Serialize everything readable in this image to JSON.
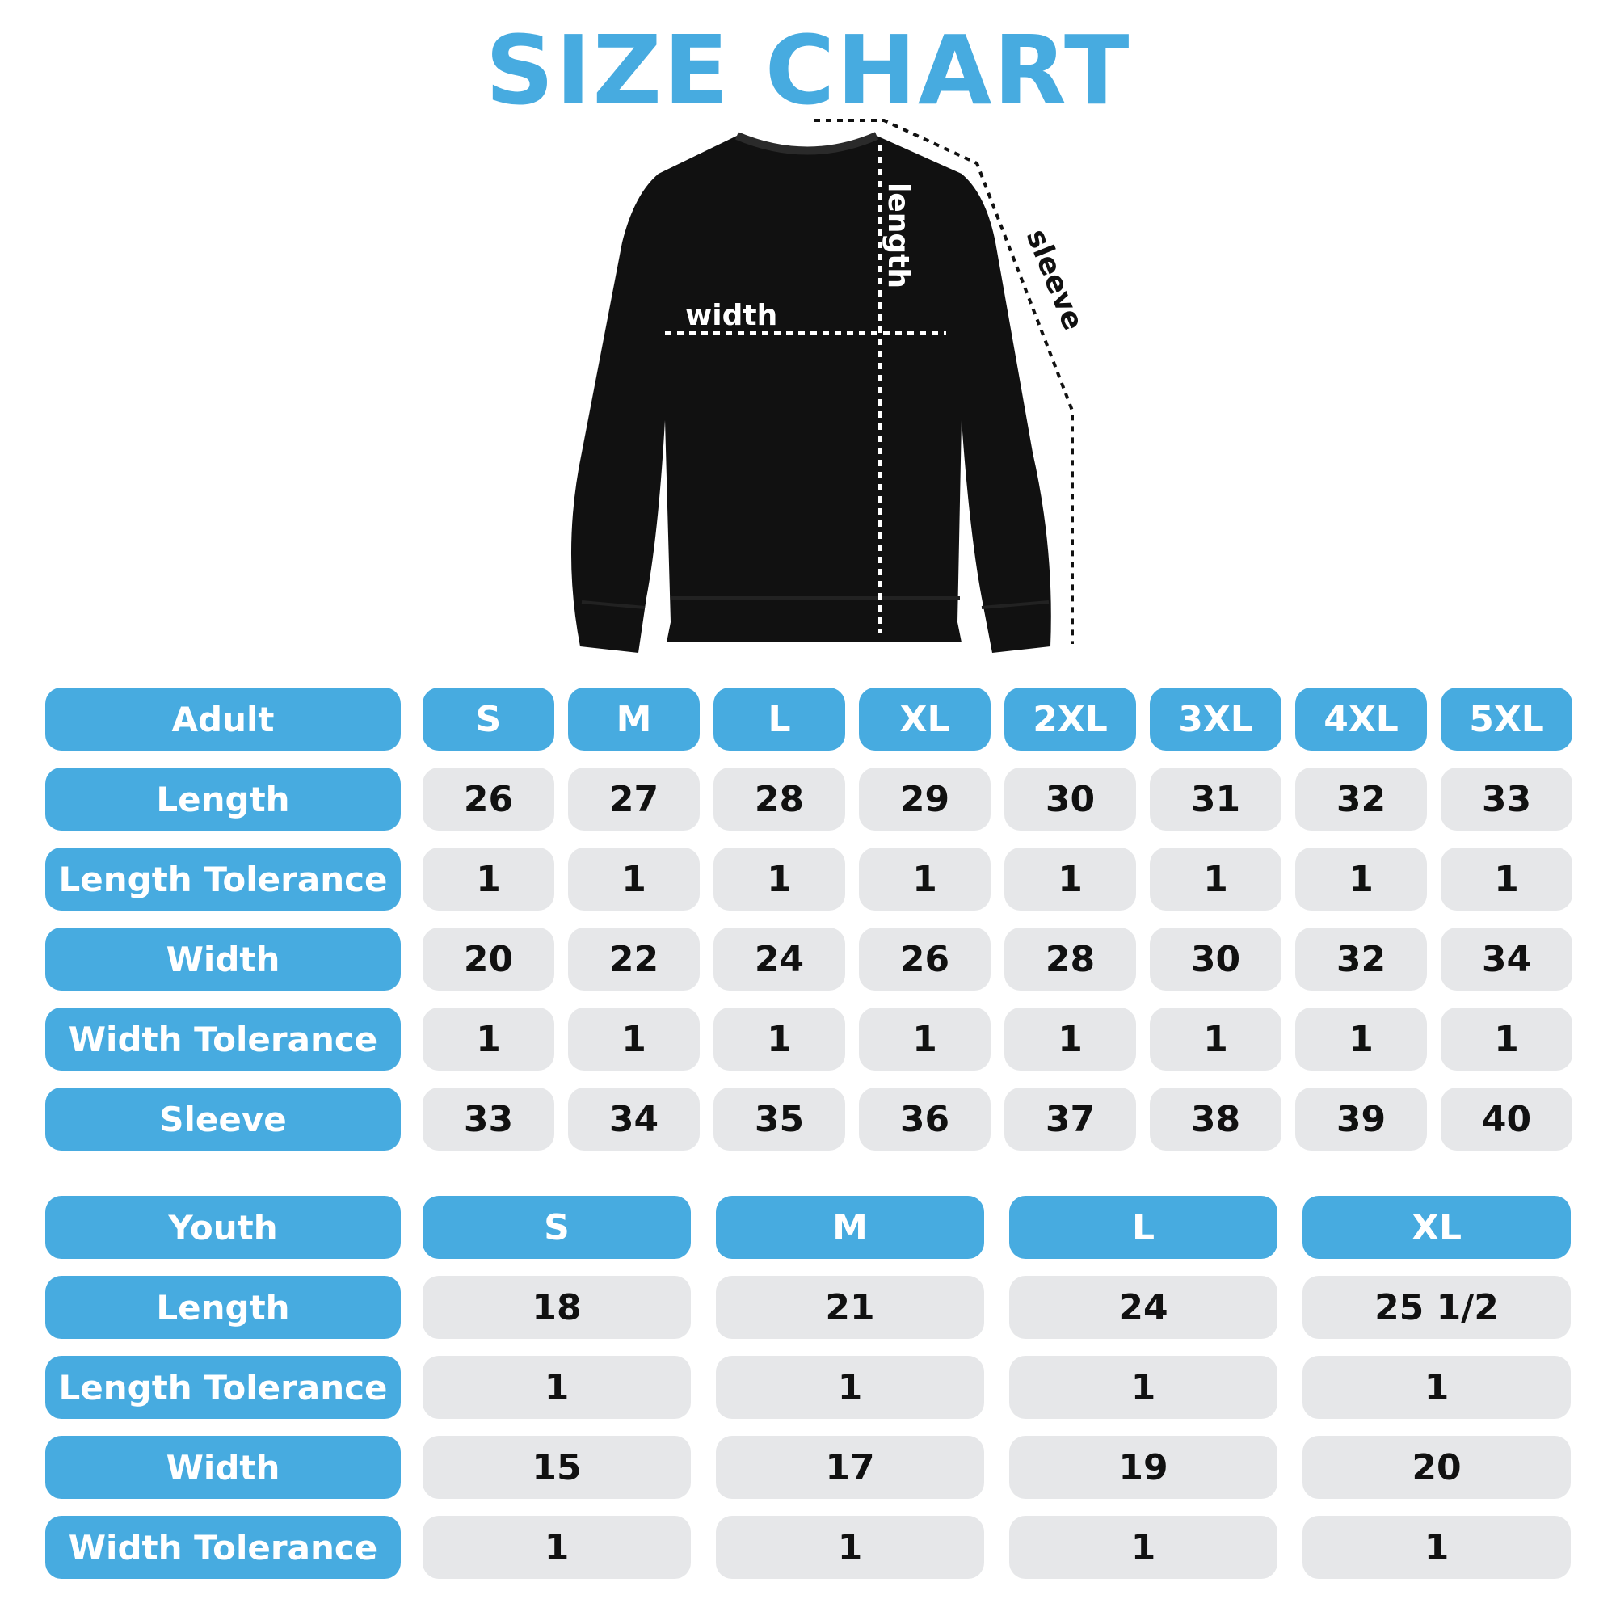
{
  "title": "SIZE CHART",
  "diagram": {
    "width_label": "width",
    "length_label": "length",
    "sleeve_label": "sleeve"
  },
  "colors": {
    "accent": "#47abe0",
    "cell": "#e6e7e9",
    "garment": "#111111"
  },
  "adult": {
    "header": "Adult",
    "sizes": [
      "S",
      "M",
      "L",
      "XL",
      "2XL",
      "3XL",
      "4XL",
      "5XL"
    ],
    "rows": [
      {
        "label": "Length",
        "values": [
          "26",
          "27",
          "28",
          "29",
          "30",
          "31",
          "32",
          "33"
        ]
      },
      {
        "label": "Length Tolerance",
        "values": [
          "1",
          "1",
          "1",
          "1",
          "1",
          "1",
          "1",
          "1"
        ]
      },
      {
        "label": "Width",
        "values": [
          "20",
          "22",
          "24",
          "26",
          "28",
          "30",
          "32",
          "34"
        ]
      },
      {
        "label": "Width Tolerance",
        "values": [
          "1",
          "1",
          "1",
          "1",
          "1",
          "1",
          "1",
          "1"
        ]
      },
      {
        "label": "Sleeve",
        "values": [
          "33",
          "34",
          "35",
          "36",
          "37",
          "38",
          "39",
          "40"
        ]
      }
    ]
  },
  "youth": {
    "header": "Youth",
    "sizes": [
      "S",
      "M",
      "L",
      "XL"
    ],
    "rows": [
      {
        "label": "Length",
        "values": [
          "18",
          "21",
          "24",
          "25 1/2"
        ]
      },
      {
        "label": "Length Tolerance",
        "values": [
          "1",
          "1",
          "1",
          "1"
        ]
      },
      {
        "label": "Width",
        "values": [
          "15",
          "17",
          "19",
          "20"
        ]
      },
      {
        "label": "Width Tolerance",
        "values": [
          "1",
          "1",
          "1",
          "1"
        ]
      }
    ]
  }
}
